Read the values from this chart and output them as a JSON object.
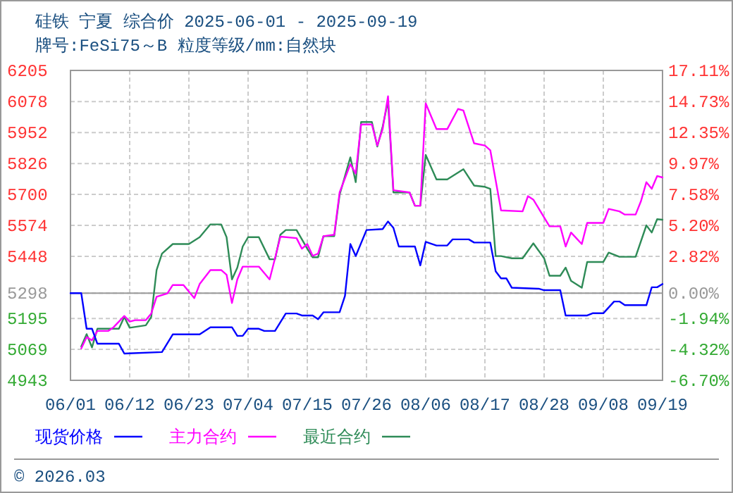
{
  "chart_data": {
    "type": "line",
    "title": "硅铁 宁夏 综合价 2025-06-01 - 2025-09-19",
    "subtitle": "牌号:FeSi75～B 粒度等级/mm:自然块",
    "xlim": [
      "2025-06-01",
      "2025-09-19"
    ],
    "xticks": [
      {
        "value": "2025-06-01",
        "label": "06/01"
      },
      {
        "value": "2025-06-12",
        "label": "06/12"
      },
      {
        "value": "2025-06-23",
        "label": "06/23"
      },
      {
        "value": "2025-07-04",
        "label": "07/04"
      },
      {
        "value": "2025-07-15",
        "label": "07/15"
      },
      {
        "value": "2025-07-26",
        "label": "07/26"
      },
      {
        "value": "2025-08-06",
        "label": "08/06"
      },
      {
        "value": "2025-08-17",
        "label": "08/17"
      },
      {
        "value": "2025-08-28",
        "label": "08/28"
      },
      {
        "value": "2025-09-08",
        "label": "09/08"
      },
      {
        "value": "2025-09-19",
        "label": "09/19"
      }
    ],
    "ylim": [
      4943,
      6205
    ],
    "yticks": [
      4943,
      5069,
      5195,
      5298,
      5448,
      5574,
      5700,
      5826,
      5952,
      6078,
      6205
    ],
    "y2lim": [
      -6.7,
      17.11
    ],
    "y2ticks": [
      {
        "value": -6.7,
        "label": "-6.70%"
      },
      {
        "value": -4.32,
        "label": "-4.32%"
      },
      {
        "value": -1.94,
        "label": "-1.94%"
      },
      {
        "value": 0,
        "label": "0.00%"
      },
      {
        "value": 2.82,
        "label": "2.82%"
      },
      {
        "value": 5.2,
        "label": "5.20%"
      },
      {
        "value": 7.58,
        "label": "7.58%"
      },
      {
        "value": 9.97,
        "label": "9.97%"
      },
      {
        "value": 12.35,
        "label": "12.35%"
      },
      {
        "value": 14.73,
        "label": "14.73%"
      },
      {
        "value": 17.11,
        "label": "17.11%"
      }
    ],
    "grid": true,
    "legend": "bottom",
    "line_style": "solid",
    "ref_lines": [
      {
        "axis": "y",
        "value": 5298,
        "color": "#999999"
      }
    ],
    "annotations": [
      "© 2026.03"
    ],
    "series": [
      {
        "name": "现货价格",
        "color": "#0000ff",
        "x": [
          "2025-06-01",
          "2025-06-03",
          "2025-06-04",
          "2025-06-05",
          "2025-06-06",
          "2025-06-10",
          "2025-06-11",
          "2025-06-18",
          "2025-06-20",
          "2025-06-25",
          "2025-06-27",
          "2025-07-01",
          "2025-07-02",
          "2025-07-03",
          "2025-07-04",
          "2025-07-06",
          "2025-07-07",
          "2025-07-09",
          "2025-07-11",
          "2025-07-13",
          "2025-07-14",
          "2025-07-16",
          "2025-07-17",
          "2025-07-18",
          "2025-07-21",
          "2025-07-22",
          "2025-07-23",
          "2025-07-24",
          "2025-07-26",
          "2025-07-29",
          "2025-07-30",
          "2025-07-31",
          "2025-08-01",
          "2025-08-04",
          "2025-08-05",
          "2025-08-06",
          "2025-08-08",
          "2025-08-10",
          "2025-08-11",
          "2025-08-14",
          "2025-08-15",
          "2025-08-18",
          "2025-08-19",
          "2025-08-20",
          "2025-08-21",
          "2025-08-22",
          "2025-08-27",
          "2025-08-28",
          "2025-08-31",
          "2025-09-01",
          "2025-09-05",
          "2025-09-06",
          "2025-09-08",
          "2025-09-10",
          "2025-09-11",
          "2025-09-12",
          "2025-09-16",
          "2025-09-17",
          "2025-09-18",
          "2025-09-19"
        ],
        "values": [
          5298,
          5298,
          5153,
          5153,
          5092,
          5092,
          5052,
          5058,
          5130,
          5130,
          5159,
          5159,
          5124,
          5124,
          5153,
          5153,
          5144,
          5144,
          5215,
          5215,
          5207,
          5207,
          5192,
          5220,
          5220,
          5287,
          5498,
          5449,
          5555,
          5559,
          5590,
          5564,
          5488,
          5488,
          5411,
          5507,
          5492,
          5492,
          5517,
          5517,
          5504,
          5504,
          5387,
          5358,
          5358,
          5320,
          5316,
          5310,
          5310,
          5207,
          5207,
          5216,
          5216,
          5264,
          5264,
          5249,
          5249,
          5322,
          5322,
          5335
        ]
      },
      {
        "name": "主力合约",
        "color": "#ff00ff",
        "x": [
          "2025-06-03",
          "2025-06-04",
          "2025-06-05",
          "2025-06-06",
          "2025-06-08",
          "2025-06-09",
          "2025-06-11",
          "2025-06-12",
          "2025-06-13",
          "2025-06-15",
          "2025-06-16",
          "2025-06-17",
          "2025-06-19",
          "2025-06-20",
          "2025-06-22",
          "2025-06-24",
          "2025-06-25",
          "2025-06-27",
          "2025-06-29",
          "2025-06-30",
          "2025-07-01",
          "2025-07-02",
          "2025-07-03",
          "2025-07-06",
          "2025-07-08",
          "2025-07-09",
          "2025-07-10",
          "2025-07-13",
          "2025-07-14",
          "2025-07-15",
          "2025-07-16",
          "2025-07-17",
          "2025-07-18",
          "2025-07-20",
          "2025-07-21",
          "2025-07-23",
          "2025-07-24",
          "2025-07-25",
          "2025-07-27",
          "2025-07-28",
          "2025-07-29",
          "2025-07-30",
          "2025-07-31",
          "2025-08-03",
          "2025-08-04",
          "2025-08-05",
          "2025-08-06",
          "2025-08-08",
          "2025-08-10",
          "2025-08-12",
          "2025-08-13",
          "2025-08-15",
          "2025-08-17",
          "2025-08-18",
          "2025-08-20",
          "2025-08-24",
          "2025-08-25",
          "2025-08-26",
          "2025-08-29",
          "2025-08-31",
          "2025-09-01",
          "2025-09-02",
          "2025-09-04",
          "2025-09-05",
          "2025-09-08",
          "2025-09-09",
          "2025-09-11",
          "2025-09-12",
          "2025-09-14",
          "2025-09-15",
          "2025-09-16",
          "2025-09-17",
          "2025-09-18",
          "2025-09-19"
        ],
        "values": [
          5073,
          5119,
          5106,
          5144,
          5144,
          5159,
          5205,
          5182,
          5188,
          5188,
          5215,
          5283,
          5297,
          5331,
          5331,
          5278,
          5335,
          5392,
          5392,
          5373,
          5258,
          5354,
          5406,
          5406,
          5354,
          5440,
          5528,
          5522,
          5479,
          5498,
          5450,
          5459,
          5530,
          5536,
          5708,
          5823,
          5785,
          5985,
          5985,
          5899,
          5966,
          6100,
          5717,
          5708,
          5654,
          5654,
          6071,
          5966,
          5966,
          6048,
          6042,
          5908,
          5899,
          5880,
          5635,
          5631,
          5693,
          5679,
          5570,
          5570,
          5488,
          5545,
          5498,
          5584,
          5584,
          5641,
          5631,
          5618,
          5618,
          5673,
          5750,
          5723,
          5775,
          5769
        ]
      },
      {
        "name": "最近合约",
        "color": "#2e8b57",
        "x": [
          "2025-06-03",
          "2025-06-04",
          "2025-06-05",
          "2025-06-06",
          "2025-06-10",
          "2025-06-11",
          "2025-06-12",
          "2025-06-15",
          "2025-06-16",
          "2025-06-17",
          "2025-06-18",
          "2025-06-20",
          "2025-06-23",
          "2025-06-25",
          "2025-06-27",
          "2025-06-29",
          "2025-06-30",
          "2025-07-01",
          "2025-07-02",
          "2025-07-03",
          "2025-07-04",
          "2025-07-06",
          "2025-07-08",
          "2025-07-09",
          "2025-07-10",
          "2025-07-11",
          "2025-07-13",
          "2025-07-15",
          "2025-07-16",
          "2025-07-17",
          "2025-07-18",
          "2025-07-20",
          "2025-07-21",
          "2025-07-23",
          "2025-07-24",
          "2025-07-25",
          "2025-07-27",
          "2025-07-28",
          "2025-07-29",
          "2025-07-30",
          "2025-07-31",
          "2025-08-03",
          "2025-08-04",
          "2025-08-05",
          "2025-08-06",
          "2025-08-08",
          "2025-08-10",
          "2025-08-13",
          "2025-08-15",
          "2025-08-17",
          "2025-08-18",
          "2025-08-19",
          "2025-08-20",
          "2025-08-22",
          "2025-08-24",
          "2025-08-26",
          "2025-08-28",
          "2025-08-29",
          "2025-08-31",
          "2025-09-01",
          "2025-09-02",
          "2025-09-04",
          "2025-09-05",
          "2025-09-08",
          "2025-09-09",
          "2025-09-11",
          "2025-09-14",
          "2025-09-16",
          "2025-09-17",
          "2025-09-18",
          "2025-09-19"
        ],
        "values": [
          5081,
          5131,
          5077,
          5153,
          5153,
          5201,
          5157,
          5167,
          5201,
          5392,
          5459,
          5498,
          5498,
          5526,
          5578,
          5578,
          5526,
          5354,
          5402,
          5488,
          5526,
          5526,
          5436,
          5436,
          5536,
          5555,
          5555,
          5479,
          5444,
          5444,
          5530,
          5530,
          5698,
          5851,
          5750,
          5995,
          5995,
          5895,
          5976,
          6081,
          5708,
          5708,
          5654,
          5654,
          5861,
          5761,
          5761,
          5803,
          5736,
          5731,
          5723,
          5449,
          5449,
          5440,
          5440,
          5501,
          5440,
          5369,
          5369,
          5402,
          5348,
          5320,
          5425,
          5425,
          5463,
          5446,
          5446,
          5574,
          5545,
          5599,
          5597
        ]
      }
    ]
  }
}
